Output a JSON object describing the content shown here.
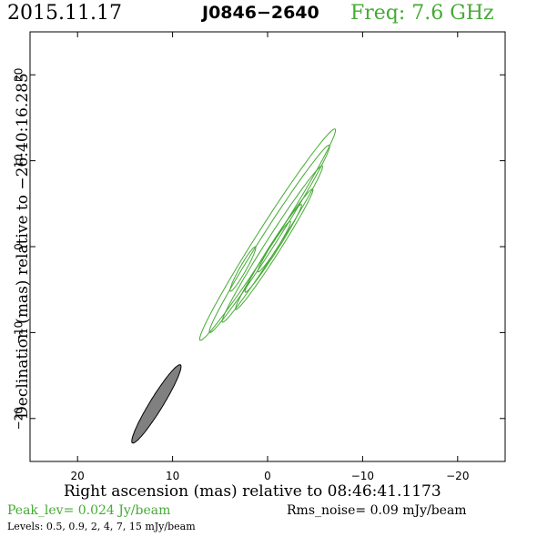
{
  "header": {
    "date": "2015.11.17",
    "source": "J0846−2640",
    "freq": "Freq: 7.6 GHz"
  },
  "footer": {
    "peak": "Peak_lev=  0.024 Jy/beam",
    "rms": "Rms_noise= 0.09 mJy/beam",
    "levels": "Levels: 0.5, 0.9,    2,    4,    7,   15 mJy/beam"
  },
  "colors": {
    "contour": "#44aa33",
    "beam_fill": "#808080",
    "text": "#000000"
  },
  "chart_data": {
    "type": "contour",
    "xlabel": "Right ascension (mas) relative to 08:46:41.1173",
    "ylabel": "Declination (mas) relative to −26:40:16.285",
    "xlim": [
      25,
      -25
    ],
    "ylim": [
      -25,
      25
    ],
    "x_ticks": [
      20,
      10,
      0,
      -10,
      -20
    ],
    "x_tick_labels": [
      "20",
      "10",
      "0",
      "−10",
      "−20"
    ],
    "y_ticks": [
      20,
      10,
      0,
      -10,
      -20
    ],
    "y_tick_labels": [
      "20",
      "10",
      "0",
      "−10",
      "−20"
    ],
    "contour_levels_mJy": [
      0.5,
      0.9,
      2,
      4,
      7,
      15
    ],
    "contours": [
      {
        "level": 0.5,
        "center": [
          0,
          1.4
        ],
        "semi_major": 14.2,
        "semi_minor": 0.95,
        "pa_deg": -30
      },
      {
        "level": 0.9,
        "center": [
          -0.2,
          0.9
        ],
        "semi_major": 12.6,
        "semi_minor": 0.8,
        "pa_deg": -30
      },
      {
        "level": 2,
        "center": [
          -0.5,
          0.3
        ],
        "semi_major": 10.5,
        "semi_minor": 0.68,
        "pa_deg": -30
      },
      {
        "level": 4,
        "center": [
          -0.7,
          -0.3
        ],
        "semi_major": 8.1,
        "semi_minor": 0.56,
        "pa_deg": -30
      },
      {
        "level": 7,
        "center": [
          -0.6,
          -0.2
        ],
        "semi_major": 5.9,
        "semi_minor": 0.45,
        "pa_deg": -30
      },
      {
        "level": 15,
        "center": [
          -0.7,
          0.0
        ],
        "semi_major": 3.4,
        "semi_minor": 0.34,
        "pa_deg": -30
      },
      {
        "level": 0.5,
        "center": [
          2.6,
          -2.6
        ],
        "semi_major": 2.9,
        "semi_minor": 0.35,
        "pa_deg": -27
      }
    ],
    "beam": {
      "center": [
        11.7,
        -18.3
      ],
      "semi_major": 5.2,
      "semi_minor": 0.7,
      "pa_deg": -29
    }
  }
}
